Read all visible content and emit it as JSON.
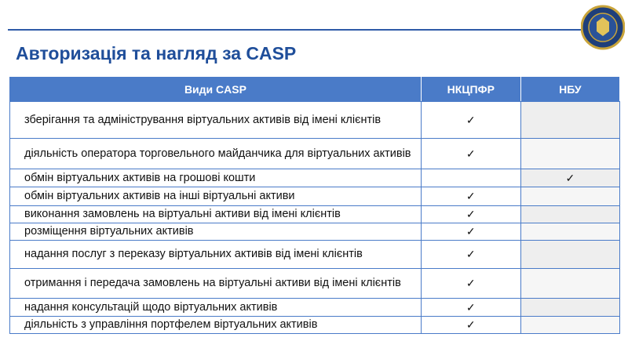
{
  "header": {
    "title": "Авторизація та нагляд за CASP"
  },
  "table": {
    "columns": [
      "Види CASP",
      "НКЦПФР",
      "НБУ"
    ],
    "rows": [
      {
        "activity": "зберігання та адміністрування віртуальних активів від імені клієнтів",
        "nkcpfr": "✓"
      },
      {
        "activity": "діяльність оператора торговельного майданчика для віртуальних активів",
        "nkcpfr": "✓"
      },
      {
        "activity": "обмін віртуальних активів на грошові кошти",
        "nbu": "✓"
      },
      {
        "activity": "обмін віртуальних активів на інші віртуальні активи",
        "nkcpfr": "✓"
      },
      {
        "activity": "виконання замовлень на віртуальні активи від імені клієнтів",
        "nkcpfr": "✓"
      },
      {
        "activity": "розміщення віртуальних активів",
        "nkcpfr": "✓"
      },
      {
        "activity": "надання послуг з переказу віртуальних активів від імені клієнтів",
        "nkcpfr": "✓"
      },
      {
        "activity": "отримання і передача замовлень на віртуальні активи від імені клієнтів",
        "nkcpfr": "✓"
      },
      {
        "activity": "надання консультацій щодо віртуальних активів",
        "nkcpfr": "✓"
      },
      {
        "activity": "діяльність з управління портфелем віртуальних активів",
        "nkcpfr": "✓"
      }
    ]
  }
}
